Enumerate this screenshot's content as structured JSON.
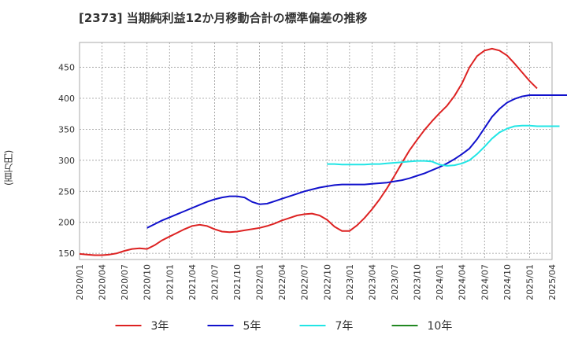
{
  "chart_data": {
    "type": "line",
    "title": "[2373]  当期純利益12か月移動合計の標準偏差の推移",
    "ylabel": "(百万円)",
    "xlabel": "",
    "ylim": [
      140,
      490
    ],
    "yticks": [
      150,
      200,
      250,
      300,
      350,
      400,
      450
    ],
    "xticks": [
      "2020/01",
      "2020/04",
      "2020/07",
      "2020/10",
      "2021/01",
      "2021/04",
      "2021/07",
      "2021/10",
      "2022/01",
      "2022/04",
      "2022/07",
      "2022/10",
      "2023/01",
      "2023/04",
      "2023/07",
      "2023/10",
      "2024/01",
      "2024/04",
      "2024/07",
      "2024/10",
      "2025/01",
      "2025/04"
    ],
    "grid": true,
    "legend_position": "bottom",
    "series": [
      {
        "name": "3年",
        "color": "#dd2222",
        "start": "2020/01",
        "values": [
          149,
          148,
          147,
          147,
          148,
          150,
          154,
          157,
          158,
          157,
          163,
          171,
          177,
          183,
          189,
          194,
          196,
          194,
          189,
          185,
          184,
          185,
          187,
          189,
          191,
          194,
          198,
          203,
          207,
          211,
          213,
          214,
          211,
          204,
          193,
          186,
          186,
          195,
          207,
          221,
          237,
          255,
          275,
          296,
          316,
          333,
          349,
          363,
          376,
          388,
          404,
          424,
          450,
          468,
          477,
          480,
          477,
          469,
          456,
          442,
          428,
          416
        ]
      },
      {
        "name": "5年",
        "color": "#1111cc",
        "start": "2020/10",
        "values": [
          191,
          197,
          203,
          208,
          213,
          218,
          223,
          228,
          233,
          237,
          240,
          242,
          242,
          240,
          233,
          229,
          230,
          234,
          238,
          242,
          246,
          250,
          253,
          256,
          258,
          260,
          261,
          261,
          261,
          261,
          262,
          263,
          264,
          266,
          268,
          271,
          275,
          279,
          284,
          289,
          295,
          302,
          310,
          319,
          334,
          352,
          370,
          383,
          393,
          399,
          403,
          405,
          405,
          405,
          405,
          405,
          405
        ]
      },
      {
        "name": "7年",
        "color": "#22e5e5",
        "start": "2022/10",
        "values": [
          294,
          294,
          293,
          293,
          293,
          293,
          294,
          294,
          295,
          296,
          297,
          298,
          299,
          299,
          298,
          293,
          291,
          292,
          295,
          300,
          310,
          322,
          335,
          345,
          351,
          355,
          356,
          356,
          355,
          355,
          355,
          355
        ]
      },
      {
        "name": "10年",
        "color": "#228822",
        "start": "2025/01",
        "values": []
      }
    ]
  }
}
